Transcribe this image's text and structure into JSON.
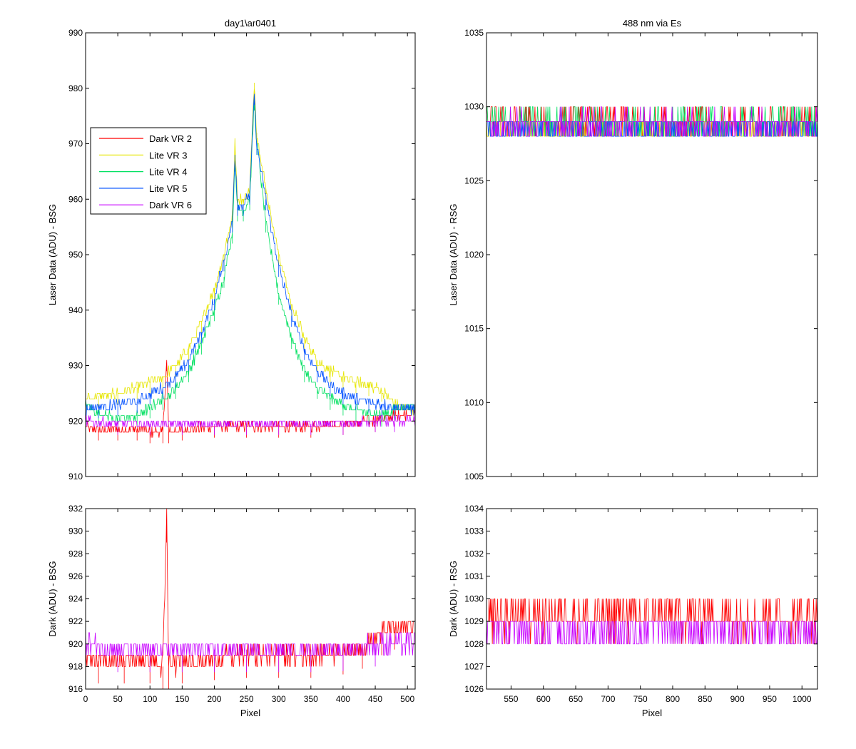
{
  "chart_data": [
    {
      "id": "top-left",
      "type": "line",
      "title": "day1\\ar0401",
      "xlabel": "",
      "ylabel": "Laser Data (ADU) - BSG",
      "xlim": [
        0,
        512
      ],
      "ylim": [
        910,
        990
      ],
      "xticks": [
        0,
        50,
        100,
        150,
        200,
        250,
        300,
        350,
        400,
        450,
        500
      ],
      "xticklabels": [],
      "yticks": [
        910,
        920,
        930,
        940,
        950,
        960,
        970,
        980,
        990
      ],
      "legend": {
        "position": "upper-left",
        "entries": [
          "Dark VR 2",
          "Lite VR 3",
          "Lite VR 4",
          "Lite VR 5",
          "Dark VR 6"
        ]
      },
      "series": [
        {
          "name": "Dark VR 2",
          "color": "#ff0000",
          "points": [
            [
              0,
              919
            ],
            [
              20,
              918.5
            ],
            [
              50,
              918.5
            ],
            [
              80,
              918.5
            ],
            [
              100,
              918
            ],
            [
              120,
              918
            ],
            [
              126,
              931
            ],
            [
              129,
              918
            ],
            [
              150,
              918.5
            ],
            [
              200,
              919
            ],
            [
              250,
              919
            ],
            [
              300,
              919
            ],
            [
              350,
              919
            ],
            [
              400,
              919.5
            ],
            [
              450,
              920
            ],
            [
              480,
              921
            ],
            [
              512,
              921.5
            ]
          ]
        },
        {
          "name": "Lite VR 3",
          "color": "#e6e600",
          "points": [
            [
              0,
              924
            ],
            [
              20,
              924.5
            ],
            [
              50,
              925
            ],
            [
              80,
              926
            ],
            [
              100,
              927
            ],
            [
              120,
              928
            ],
            [
              140,
              930
            ],
            [
              160,
              933
            ],
            [
              180,
              938
            ],
            [
              200,
              944
            ],
            [
              215,
              950
            ],
            [
              228,
              957
            ],
            [
              232,
              970
            ],
            [
              236,
              960
            ],
            [
              245,
              960
            ],
            [
              255,
              962
            ],
            [
              262,
              981
            ],
            [
              266,
              972
            ],
            [
              280,
              962
            ],
            [
              300,
              950
            ],
            [
              320,
              941
            ],
            [
              340,
              935
            ],
            [
              360,
              931
            ],
            [
              380,
              929
            ],
            [
              400,
              928
            ],
            [
              420,
              927
            ],
            [
              440,
              926.5
            ],
            [
              460,
              925.5
            ],
            [
              480,
              923
            ],
            [
              512,
              922
            ]
          ]
        },
        {
          "name": "Lite VR 4",
          "color": "#00e060",
          "points": [
            [
              0,
              923
            ],
            [
              20,
              921.5
            ],
            [
              50,
              920.5
            ],
            [
              80,
              921
            ],
            [
              100,
              922.5
            ],
            [
              120,
              924
            ],
            [
              140,
              926
            ],
            [
              160,
              929
            ],
            [
              180,
              934
            ],
            [
              200,
              940
            ],
            [
              215,
              946
            ],
            [
              228,
              954
            ],
            [
              232,
              967
            ],
            [
              236,
              958
            ],
            [
              245,
              958
            ],
            [
              255,
              960
            ],
            [
              262,
              978
            ],
            [
              266,
              970
            ],
            [
              280,
              956
            ],
            [
              300,
              943
            ],
            [
              320,
              935
            ],
            [
              340,
              929
            ],
            [
              360,
              926
            ],
            [
              380,
              924
            ],
            [
              400,
              923
            ],
            [
              420,
              922
            ],
            [
              440,
              921.5
            ],
            [
              460,
              921
            ],
            [
              480,
              922
            ],
            [
              512,
              923
            ]
          ]
        },
        {
          "name": "Lite VR 5",
          "color": "#0050ff",
          "points": [
            [
              0,
              922
            ],
            [
              20,
              922.5
            ],
            [
              50,
              923
            ],
            [
              80,
              923.5
            ],
            [
              100,
              925
            ],
            [
              120,
              926
            ],
            [
              140,
              928
            ],
            [
              160,
              931
            ],
            [
              180,
              936
            ],
            [
              200,
              942
            ],
            [
              215,
              949
            ],
            [
              228,
              956
            ],
            [
              232,
              968
            ],
            [
              236,
              959
            ],
            [
              245,
              959
            ],
            [
              255,
              961
            ],
            [
              262,
              979
            ],
            [
              266,
              970
            ],
            [
              280,
              960
            ],
            [
              300,
              948
            ],
            [
              320,
              939
            ],
            [
              340,
              933
            ],
            [
              360,
              929
            ],
            [
              380,
              926.5
            ],
            [
              400,
              925
            ],
            [
              420,
              924
            ],
            [
              440,
              923.5
            ],
            [
              460,
              923
            ],
            [
              480,
              922.5
            ],
            [
              512,
              922
            ]
          ]
        },
        {
          "name": "Dark VR 6",
          "color": "#c800ff",
          "points": [
            [
              0,
              920
            ],
            [
              50,
              919.5
            ],
            [
              100,
              919.5
            ],
            [
              150,
              919.5
            ],
            [
              200,
              919.5
            ],
            [
              250,
              919.5
            ],
            [
              300,
              919.5
            ],
            [
              350,
              919.5
            ],
            [
              400,
              919.5
            ],
            [
              450,
              920
            ],
            [
              480,
              920
            ],
            [
              512,
              920
            ]
          ]
        }
      ]
    },
    {
      "id": "top-right",
      "type": "line",
      "title": "488 nm via Es",
      "xlabel": "",
      "ylabel": "Laser Data (ADU) - RSG",
      "xlim": [
        512,
        1024
      ],
      "ylim": [
        1005,
        1035
      ],
      "xticks": [
        550,
        600,
        650,
        700,
        750,
        800,
        850,
        900,
        950,
        1000
      ],
      "xticklabels": [],
      "yticks": [
        1005,
        1010,
        1015,
        1020,
        1025,
        1030,
        1035
      ],
      "series": [
        {
          "name": "Dark VR 2",
          "color": "#ff0000",
          "points": [
            [
              512,
              1029
            ],
            [
              1024,
              1029
            ]
          ]
        },
        {
          "name": "Lite VR 3",
          "color": "#e6e600",
          "points": [
            [
              512,
              1028.5
            ],
            [
              1024,
              1028.5
            ]
          ]
        },
        {
          "name": "Lite VR 4",
          "color": "#00e060",
          "points": [
            [
              512,
              1029
            ],
            [
              1024,
              1029
            ]
          ]
        },
        {
          "name": "Lite VR 5",
          "color": "#0050ff",
          "points": [
            [
              512,
              1028.5
            ],
            [
              1024,
              1028.5
            ]
          ]
        },
        {
          "name": "Dark VR 6",
          "color": "#c800ff",
          "points": [
            [
              512,
              1028.8
            ],
            [
              1024,
              1028.8
            ]
          ]
        }
      ]
    },
    {
      "id": "bottom-left",
      "type": "line",
      "title": "",
      "xlabel": "Pixel",
      "ylabel": "Dark (ADU) - BSG",
      "xlim": [
        0,
        512
      ],
      "ylim": [
        916,
        932
      ],
      "xticks": [
        0,
        50,
        100,
        150,
        200,
        250,
        300,
        350,
        400,
        450,
        500
      ],
      "xticklabels": [
        "0",
        "50",
        "100",
        "150",
        "200",
        "250",
        "300",
        "350",
        "400",
        "450",
        "500"
      ],
      "yticks": [
        916,
        918,
        920,
        922,
        924,
        926,
        928,
        930,
        932
      ],
      "series": [
        {
          "name": "Dark VR 2",
          "color": "#ff0000",
          "points": [
            [
              0,
              919
            ],
            [
              20,
              918.5
            ],
            [
              60,
              918.5
            ],
            [
              100,
              918.5
            ],
            [
              120,
              918
            ],
            [
              126,
              931
            ],
            [
              129,
              918
            ],
            [
              150,
              918.5
            ],
            [
              200,
              918.8
            ],
            [
              250,
              919
            ],
            [
              300,
              919
            ],
            [
              350,
              919
            ],
            [
              400,
              919.3
            ],
            [
              430,
              919.8
            ],
            [
              460,
              921
            ],
            [
              480,
              921.5
            ],
            [
              512,
              921.5
            ]
          ]
        },
        {
          "name": "Dark VR 6",
          "color": "#c800ff",
          "points": [
            [
              0,
              920
            ],
            [
              50,
              919.5
            ],
            [
              100,
              919.5
            ],
            [
              150,
              919.5
            ],
            [
              200,
              919.5
            ],
            [
              250,
              919.5
            ],
            [
              300,
              919.5
            ],
            [
              350,
              919.5
            ],
            [
              400,
              919.6
            ],
            [
              450,
              920
            ],
            [
              512,
              920
            ]
          ]
        }
      ]
    },
    {
      "id": "bottom-right",
      "type": "line",
      "title": "",
      "xlabel": "Pixel",
      "ylabel": "Dark (ADU) - RSG",
      "xlim": [
        512,
        1024
      ],
      "ylim": [
        1026,
        1034
      ],
      "xticks": [
        550,
        600,
        650,
        700,
        750,
        800,
        850,
        900,
        950,
        1000
      ],
      "xticklabels": [
        "550",
        "600",
        "650",
        "700",
        "750",
        "800",
        "850",
        "900",
        "950",
        "1000"
      ],
      "yticks": [
        1026,
        1027,
        1028,
        1029,
        1030,
        1031,
        1032,
        1033,
        1034
      ],
      "series": [
        {
          "name": "Dark VR 2",
          "color": "#ff0000",
          "points": [
            [
              512,
              1029.2
            ],
            [
              1024,
              1029.2
            ]
          ]
        },
        {
          "name": "Dark VR 6",
          "color": "#c800ff",
          "points": [
            [
              512,
              1028.7
            ],
            [
              1024,
              1028.7
            ]
          ]
        }
      ]
    }
  ]
}
